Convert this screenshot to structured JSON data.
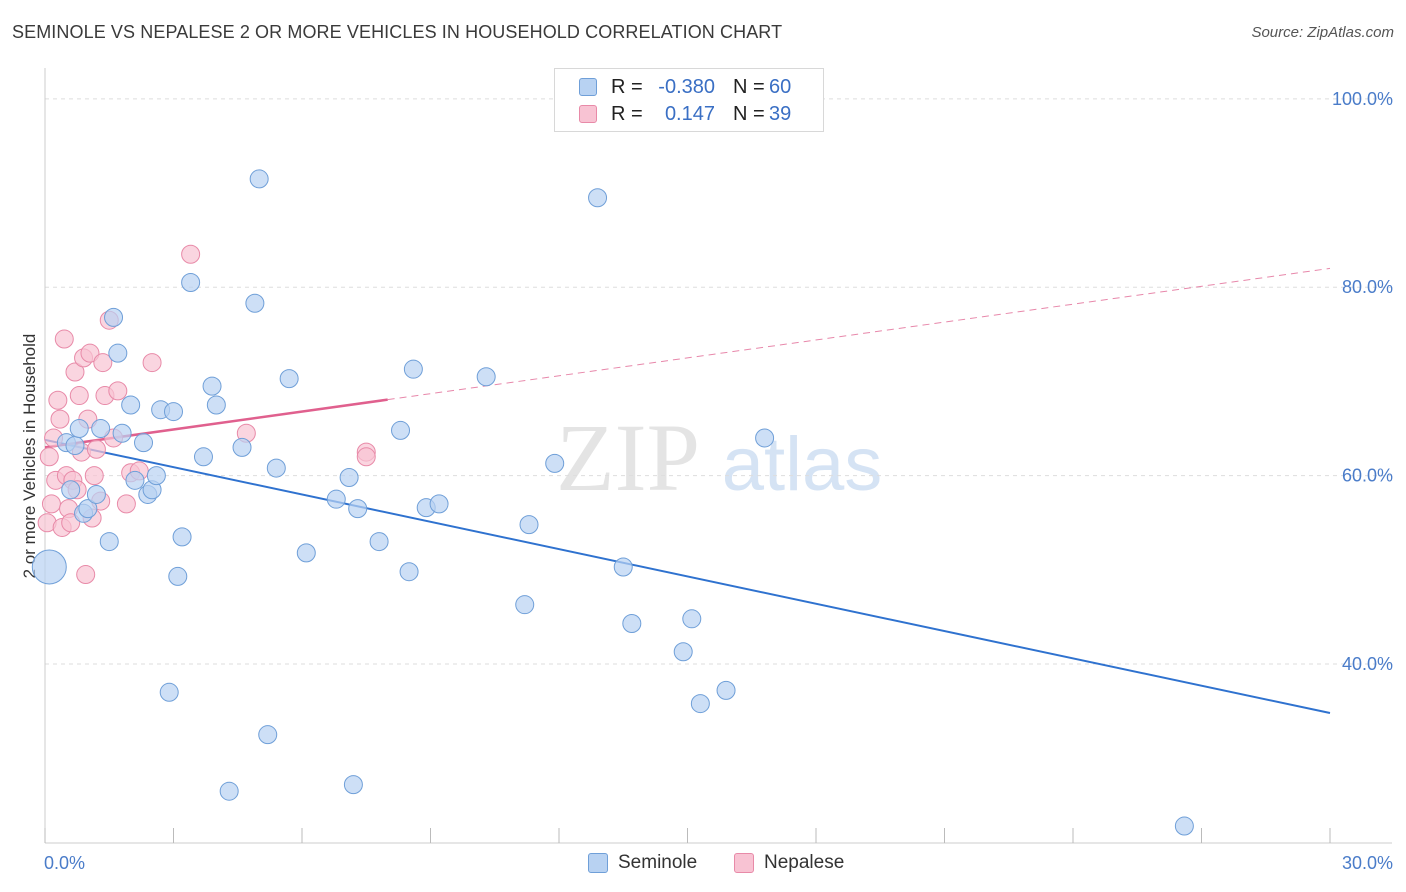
{
  "title": "SEMINOLE VS NEPALESE 2 OR MORE VEHICLES IN HOUSEHOLD CORRELATION CHART",
  "source": "Source: ZipAtlas.com",
  "colors": {
    "seminole_fill": "#b8d2f2",
    "seminole_stroke": "#6f9fd8",
    "seminole_line": "#2f72cf",
    "nepalese_fill": "#f8c3d3",
    "nepalese_stroke": "#e88aa8",
    "nepalese_line": "#e0608e",
    "grid": "#dddddd",
    "tick_text": "#4a7cc9"
  },
  "legend": {
    "seminole": {
      "r_label": "R =",
      "r_value": "-0.380",
      "n_label": "N =",
      "n_value": "60"
    },
    "nepalese": {
      "r_label": "R =",
      "r_value": "0.147",
      "n_label": "N =",
      "n_value": "39"
    }
  },
  "bottom_legend": {
    "seminole": "Seminole",
    "nepalese": "Nepalese"
  },
  "watermark": {
    "zip": "ZIP",
    "atlas": "atlas"
  },
  "chart_data": {
    "type": "scatter",
    "title": "SEMINOLE VS NEPALESE 2 OR MORE VEHICLES IN HOUSEHOLD CORRELATION CHART",
    "xlabel": "",
    "ylabel": "2 or more Vehicles in Household",
    "xlim": [
      0,
      30
    ],
    "ylim": [
      21,
      102
    ],
    "x_tick_labels": [
      {
        "value": 0,
        "label": "0.0%"
      },
      {
        "value": 30,
        "label": "30.0%"
      }
    ],
    "y_tick_labels": [
      {
        "value": 40,
        "label": "40.0%"
      },
      {
        "value": 60,
        "label": "60.0%"
      },
      {
        "value": 80,
        "label": "80.0%"
      },
      {
        "value": 100,
        "label": "100.0%"
      }
    ],
    "x_minor_ticks": [
      0,
      3,
      6,
      9,
      12,
      15,
      18,
      21,
      24,
      27,
      30
    ],
    "series": [
      {
        "name": "Seminole",
        "r": -0.38,
        "n": 60,
        "trend": {
          "x": [
            0,
            30
          ],
          "y": [
            63.8,
            34.8
          ],
          "solid_to": 30
        },
        "points": [
          [
            0.1,
            50.3,
            "large"
          ],
          [
            0.5,
            63.5
          ],
          [
            0.6,
            58.5
          ],
          [
            0.7,
            63.2
          ],
          [
            0.8,
            65.0
          ],
          [
            0.9,
            56.0
          ],
          [
            1.0,
            56.5
          ],
          [
            1.2,
            58.0
          ],
          [
            1.3,
            65.0
          ],
          [
            1.5,
            53.0
          ],
          [
            1.6,
            76.8
          ],
          [
            1.7,
            73.0
          ],
          [
            1.8,
            64.5
          ],
          [
            2.0,
            67.5
          ],
          [
            2.1,
            59.5
          ],
          [
            2.3,
            63.5
          ],
          [
            2.4,
            58.0
          ],
          [
            2.5,
            58.5
          ],
          [
            2.6,
            60.0
          ],
          [
            2.7,
            67.0
          ],
          [
            2.9,
            37.0
          ],
          [
            3.0,
            66.8
          ],
          [
            3.1,
            49.3
          ],
          [
            3.2,
            53.5
          ],
          [
            3.4,
            80.5
          ],
          [
            3.7,
            62.0
          ],
          [
            3.9,
            69.5
          ],
          [
            4.0,
            67.5
          ],
          [
            4.3,
            26.5
          ],
          [
            4.6,
            63.0
          ],
          [
            4.9,
            78.3
          ],
          [
            5.0,
            91.5
          ],
          [
            5.2,
            32.5
          ],
          [
            5.4,
            60.8
          ],
          [
            5.7,
            70.3
          ],
          [
            6.1,
            51.8
          ],
          [
            6.8,
            57.5
          ],
          [
            7.1,
            59.8
          ],
          [
            7.2,
            27.2
          ],
          [
            7.3,
            56.5
          ],
          [
            7.8,
            53.0
          ],
          [
            8.3,
            64.8
          ],
          [
            8.5,
            49.8
          ],
          [
            8.6,
            71.3
          ],
          [
            8.9,
            56.6
          ],
          [
            9.2,
            57.0
          ],
          [
            10.3,
            70.5
          ],
          [
            11.2,
            46.3
          ],
          [
            11.3,
            54.8
          ],
          [
            11.9,
            61.3
          ],
          [
            12.9,
            89.5
          ],
          [
            13.5,
            50.3
          ],
          [
            13.7,
            44.3
          ],
          [
            14.9,
            41.3
          ],
          [
            15.1,
            44.8
          ],
          [
            15.3,
            35.8
          ],
          [
            15.9,
            37.2
          ],
          [
            16.8,
            64.0
          ],
          [
            26.6,
            22.8
          ]
        ]
      },
      {
        "name": "Nepalese",
        "r": 0.147,
        "n": 39,
        "trend": {
          "x": [
            0,
            30
          ],
          "y": [
            63.0,
            82.0
          ],
          "solid_to": 8
        },
        "points": [
          [
            0.05,
            55.0
          ],
          [
            0.1,
            62.0
          ],
          [
            0.15,
            57.0
          ],
          [
            0.2,
            64.0
          ],
          [
            0.25,
            59.5
          ],
          [
            0.3,
            68.0
          ],
          [
            0.35,
            66.0
          ],
          [
            0.4,
            54.5
          ],
          [
            0.45,
            74.5
          ],
          [
            0.5,
            60.0
          ],
          [
            0.55,
            56.5
          ],
          [
            0.6,
            55.0
          ],
          [
            0.65,
            59.5
          ],
          [
            0.7,
            71.0
          ],
          [
            0.75,
            58.5
          ],
          [
            0.8,
            68.5
          ],
          [
            0.85,
            62.5
          ],
          [
            0.9,
            72.5
          ],
          [
            0.95,
            49.5
          ],
          [
            1.0,
            66.0
          ],
          [
            1.05,
            73.0
          ],
          [
            1.1,
            55.5
          ],
          [
            1.15,
            60.0
          ],
          [
            1.2,
            62.8
          ],
          [
            1.3,
            57.3
          ],
          [
            1.35,
            72.0
          ],
          [
            1.4,
            68.5
          ],
          [
            1.5,
            76.5
          ],
          [
            1.6,
            64.0
          ],
          [
            1.7,
            69.0
          ],
          [
            1.9,
            57.0
          ],
          [
            2.0,
            60.3
          ],
          [
            2.2,
            60.5
          ],
          [
            2.5,
            72.0
          ],
          [
            3.4,
            83.5
          ],
          [
            4.7,
            64.5
          ],
          [
            7.5,
            62.5
          ],
          [
            7.5,
            62.0
          ]
        ]
      }
    ]
  }
}
